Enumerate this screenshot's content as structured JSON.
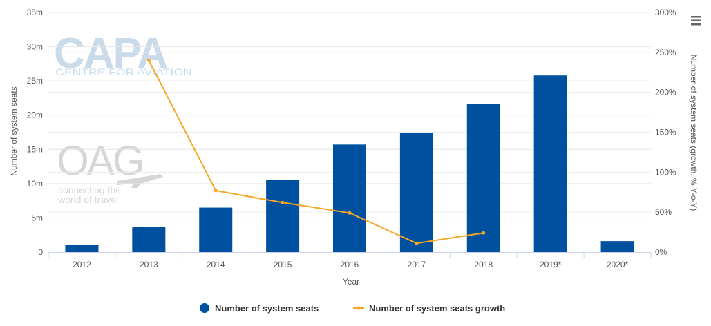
{
  "chart_data": {
    "type": "bar",
    "categories": [
      "2012",
      "2013",
      "2014",
      "2015",
      "2016",
      "2017",
      "2018",
      "2019*",
      "2020*"
    ],
    "xlabel": "Year",
    "ylabel": "Number of system seats",
    "ylabel_right": "Number of system seats (growth, % Y-o-Y)",
    "y_ticks": [
      "0",
      "5m",
      "10m",
      "15m",
      "20m",
      "25m",
      "30m",
      "35m"
    ],
    "y2_ticks": [
      "0%",
      "50%",
      "100%",
      "150%",
      "200%",
      "250%",
      "300%"
    ],
    "ylim": [
      0,
      35000000
    ],
    "y2lim": [
      0,
      300
    ],
    "grid": true,
    "legend_position": "bottom",
    "series": [
      {
        "name": "Number of system seats",
        "type": "bar",
        "axis": "left",
        "color": "#0050a0",
        "values": [
          1100000,
          3700000,
          6500000,
          10500000,
          15700000,
          17400000,
          21600000,
          25800000,
          1600000
        ]
      },
      {
        "name": "Number of system seats growth",
        "type": "line",
        "axis": "right",
        "color": "#f5a623",
        "values": [
          null,
          240,
          77,
          62,
          49,
          11,
          24,
          null,
          null
        ]
      }
    ]
  },
  "watermarks": {
    "capa_logo": "CAPA",
    "capa_tagline": "CENTRE FOR AVIATION",
    "oag_logo": "OAG",
    "oag_tagline_1": "connecting the",
    "oag_tagline_2": "world of travel"
  },
  "menu": {
    "icon": "hamburger-menu-icon"
  }
}
